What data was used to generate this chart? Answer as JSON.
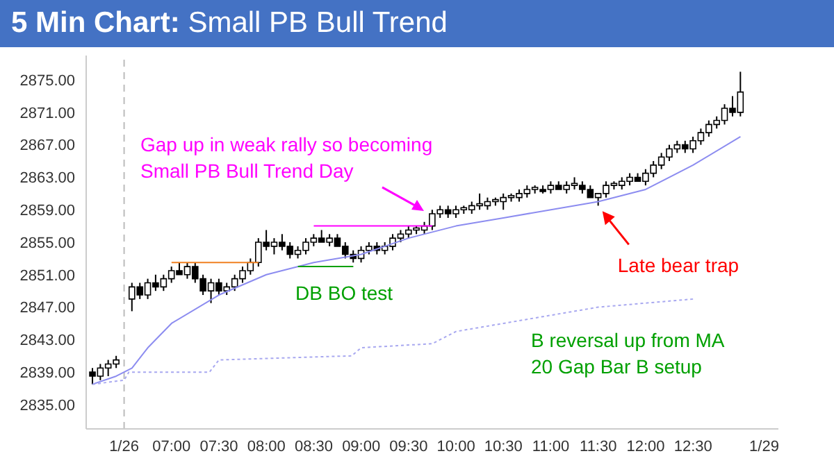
{
  "chart_data": {
    "type": "candlestick",
    "title": "5 Min Chart:",
    "subtitle": "Small PB Bull Trend",
    "x": [
      6.167,
      6.25,
      6.333,
      6.417,
      6.583,
      6.667,
      6.75,
      6.833,
      6.917,
      7,
      7.083,
      7.167,
      7.25,
      7.333,
      7.417,
      7.5,
      7.583,
      7.667,
      7.75,
      7.833,
      7.917,
      8,
      8.083,
      8.167,
      8.25,
      8.333,
      8.417,
      8.5,
      8.583,
      8.667,
      8.75,
      8.833,
      8.917,
      9,
      9.083,
      9.167,
      9.25,
      9.333,
      9.417,
      9.5,
      9.583,
      9.667,
      9.75,
      9.833,
      9.917,
      10,
      10.083,
      10.167,
      10.25,
      10.333,
      10.417,
      10.5,
      10.583,
      10.667,
      10.75,
      10.833,
      10.917,
      11,
      11.083,
      11.167,
      11.25,
      11.333,
      11.417,
      11.5,
      11.583,
      11.667,
      11.75,
      11.833,
      11.917,
      12,
      12.083,
      12.167,
      12.25,
      12.333,
      12.417,
      12.5,
      12.583,
      12.667,
      12.75,
      12.833,
      12.917,
      13
    ],
    "ohlc": [
      [
        2839,
        2839.5,
        2837.5,
        2838.5
      ],
      [
        2838.5,
        2840,
        2838,
        2839.5
      ],
      [
        2839.5,
        2840.5,
        2838.5,
        2840
      ],
      [
        2840,
        2841,
        2839.5,
        2840.5
      ],
      [
        2848,
        2850,
        2846.5,
        2849.5
      ],
      [
        2849.5,
        2850,
        2848,
        2848.5
      ],
      [
        2848.5,
        2850.5,
        2848,
        2850
      ],
      [
        2850,
        2851,
        2849,
        2849.5
      ],
      [
        2849.5,
        2851,
        2849,
        2850.5
      ],
      [
        2850.5,
        2852,
        2850,
        2851.5
      ],
      [
        2851.5,
        2852.5,
        2851,
        2851
      ],
      [
        2851,
        2852.5,
        2850.5,
        2852
      ],
      [
        2852,
        2852.5,
        2850,
        2850.5
      ],
      [
        2850.5,
        2851,
        2848.5,
        2849
      ],
      [
        2849,
        2850.5,
        2847.5,
        2850
      ],
      [
        2850,
        2850.5,
        2848.5,
        2849
      ],
      [
        2849,
        2850,
        2848.5,
        2849.5
      ],
      [
        2849.5,
        2851,
        2849,
        2850.5
      ],
      [
        2850.5,
        2852,
        2850,
        2851.5
      ],
      [
        2851.5,
        2853,
        2851,
        2852.5
      ],
      [
        2852.5,
        2855.5,
        2852,
        2855
      ],
      [
        2855,
        2856.5,
        2854,
        2854.5
      ],
      [
        2854.5,
        2855.5,
        2853.5,
        2855
      ],
      [
        2855,
        2856,
        2854,
        2854.5
      ],
      [
        2854.5,
        2855,
        2853,
        2853.5
      ],
      [
        2853.5,
        2854.5,
        2853,
        2854
      ],
      [
        2854,
        2855.5,
        2853.5,
        2855
      ],
      [
        2855,
        2856,
        2854.5,
        2855.5
      ],
      [
        2855.5,
        2856.5,
        2855,
        2855
      ],
      [
        2855,
        2856,
        2854.5,
        2855.5
      ],
      [
        2855.5,
        2856,
        2854.5,
        2854.5
      ],
      [
        2854.5,
        2855,
        2853,
        2853.5
      ],
      [
        2853.5,
        2854,
        2852.5,
        2853
      ],
      [
        2853,
        2854.5,
        2852.5,
        2854
      ],
      [
        2854,
        2855,
        2853.5,
        2854.5
      ],
      [
        2854.5,
        2855,
        2853.5,
        2854
      ],
      [
        2854,
        2855,
        2853.5,
        2854.5
      ],
      [
        2854.5,
        2856,
        2854,
        2855.5
      ],
      [
        2855.5,
        2856.5,
        2855,
        2856
      ],
      [
        2856,
        2857,
        2855.5,
        2856.5
      ],
      [
        2856.5,
        2857,
        2856,
        2856.75
      ],
      [
        2856.5,
        2857.5,
        2856,
        2857
      ],
      [
        2857,
        2859,
        2856.5,
        2858.5
      ],
      [
        2858.5,
        2859.5,
        2858,
        2859
      ],
      [
        2859,
        2859.5,
        2858,
        2858.5
      ],
      [
        2858.5,
        2859.5,
        2858,
        2859
      ],
      [
        2859,
        2859.5,
        2858.5,
        2859.25
      ],
      [
        2859,
        2860,
        2858.5,
        2859.5
      ],
      [
        2859.5,
        2861,
        2859,
        2859.75
      ],
      [
        2859.5,
        2860.5,
        2859,
        2860
      ],
      [
        2860,
        2860.5,
        2859.5,
        2860.25
      ],
      [
        2860,
        2861,
        2859,
        2860.5
      ],
      [
        2860.5,
        2861,
        2860,
        2860.75
      ],
      [
        2860.5,
        2861.5,
        2860,
        2861
      ],
      [
        2861,
        2862,
        2860.5,
        2861.5
      ],
      [
        2861.5,
        2862,
        2861,
        2861.75
      ],
      [
        2861.5,
        2862,
        2861,
        2861.25
      ],
      [
        2861.5,
        2862.5,
        2861,
        2862
      ],
      [
        2862,
        2862.5,
        2861.5,
        2861.5
      ],
      [
        2861.5,
        2862.5,
        2861,
        2862
      ],
      [
        2862,
        2863,
        2861.5,
        2862.25
      ],
      [
        2862,
        2862.5,
        2861,
        2861.5
      ],
      [
        2861.5,
        2862,
        2860.5,
        2860.5
      ],
      [
        2860.5,
        2861,
        2859.5,
        2861
      ],
      [
        2861,
        2862.5,
        2860.5,
        2862
      ],
      [
        2862,
        2862.5,
        2861.5,
        2862.25
      ],
      [
        2862,
        2863,
        2861.5,
        2862.5
      ],
      [
        2862.5,
        2863.5,
        2862,
        2863
      ],
      [
        2863,
        2863.5,
        2862.5,
        2862.5
      ],
      [
        2862.5,
        2864,
        2862,
        2863.5
      ],
      [
        2863.5,
        2865,
        2863,
        2864.5
      ],
      [
        2864.5,
        2866,
        2864,
        2865.5
      ],
      [
        2865.5,
        2867,
        2865,
        2866.5
      ],
      [
        2866.5,
        2867.5,
        2866,
        2867
      ],
      [
        2867,
        2867.5,
        2866,
        2866.5
      ],
      [
        2866.5,
        2868,
        2866,
        2867.5
      ],
      [
        2867.5,
        2869,
        2867,
        2868.5
      ],
      [
        2868.5,
        2870,
        2868,
        2869.5
      ],
      [
        2869.5,
        2870.5,
        2869,
        2870
      ],
      [
        2870,
        2872,
        2869.5,
        2871.5
      ],
      [
        2871.5,
        2873,
        2870.5,
        2871
      ],
      [
        2871,
        2876,
        2870.5,
        2873.5
      ]
    ],
    "series": [
      {
        "type": "line",
        "color": "#8c8cf0",
        "x": [
          6.167,
          6.417,
          6.583,
          6.75,
          7,
          7.5,
          8,
          8.5,
          9,
          9.5,
          10,
          10.5,
          11,
          11.5,
          12,
          12.5,
          13
        ],
        "values": [
          2837.5,
          2838.5,
          2839.5,
          2842,
          2845,
          2848.5,
          2851,
          2852.5,
          2853.5,
          2855.5,
          2857,
          2858,
          2859,
          2860,
          2861.5,
          2864.5,
          2868
        ]
      },
      {
        "type": "line",
        "color": "#a8a8f0",
        "line_style": "dotted",
        "x": [
          6.167,
          6.5,
          6.55,
          7.4,
          7.5,
          8.9,
          9,
          9.75,
          10,
          10.5,
          11,
          11.5,
          12,
          12.5
        ],
        "values": [
          2837.5,
          2838,
          2839,
          2839,
          2840.5,
          2841,
          2842,
          2842.5,
          2844,
          2845,
          2846,
          2847,
          2847.5,
          2848
        ]
      },
      {
        "type": "line",
        "color": "#f08020",
        "x": [
          7,
          7.917
        ],
        "values": [
          2852.5,
          2852.5
        ]
      },
      {
        "type": "line",
        "color": "#00a000",
        "x": [
          8.333,
          8.917
        ],
        "values": [
          2852,
          2852
        ]
      },
      {
        "type": "line",
        "color": "#ff00ff",
        "x": [
          8.5,
          9.75
        ],
        "values": [
          2857,
          2857
        ]
      }
    ],
    "xlim": [
      6.1,
      13.4
    ],
    "xticks": [
      {
        "value": 6.5,
        "label": "1/26"
      },
      {
        "value": 7,
        "label": "07:00"
      },
      {
        "value": 7.5,
        "label": "07:30"
      },
      {
        "value": 8,
        "label": "08:00"
      },
      {
        "value": 8.5,
        "label": "08:30"
      },
      {
        "value": 9,
        "label": "09:00"
      },
      {
        "value": 9.5,
        "label": "09:30"
      },
      {
        "value": 10,
        "label": "10:00"
      },
      {
        "value": 10.5,
        "label": "10:30"
      },
      {
        "value": 11,
        "label": "11:00"
      },
      {
        "value": 11.5,
        "label": "11:30"
      },
      {
        "value": 12,
        "label": "12:00"
      },
      {
        "value": 12.5,
        "label": "12:30"
      },
      {
        "value": 13.25,
        "label": "1/29"
      }
    ],
    "ylim": [
      2832,
      2878
    ],
    "yticks": [
      {
        "value": 2835,
        "label": "2835.00"
      },
      {
        "value": 2839,
        "label": "2839.00"
      },
      {
        "value": 2843,
        "label": "2843.00"
      },
      {
        "value": 2847,
        "label": "2847.00"
      },
      {
        "value": 2851,
        "label": "2851.00"
      },
      {
        "value": 2855,
        "label": "2855.00"
      },
      {
        "value": 2859,
        "label": "2859.00"
      },
      {
        "value": 2863,
        "label": "2863.00"
      },
      {
        "value": 2867,
        "label": "2867.00"
      },
      {
        "value": 2871,
        "label": "2871.00"
      },
      {
        "value": 2875,
        "label": "2875.00"
      }
    ],
    "ref_lines": [
      {
        "axis": "x",
        "value": 6.5,
        "color": "#bbbbbb",
        "line_style": "dashed"
      }
    ],
    "annotations": [
      {
        "text": "Gap up in weak rally so becoming\nSmall PB Bull Trend Day",
        "x": 9.75,
        "y": 2858
      },
      {
        "text": "Late bear trap",
        "x": 11.5,
        "y": 2859.5
      },
      "B reversal up from MA\n20 Gap Bar B setup",
      {
        "text": "DB BO test",
        "x": 8.6,
        "y": 2852
      }
    ],
    "grid": false
  }
}
